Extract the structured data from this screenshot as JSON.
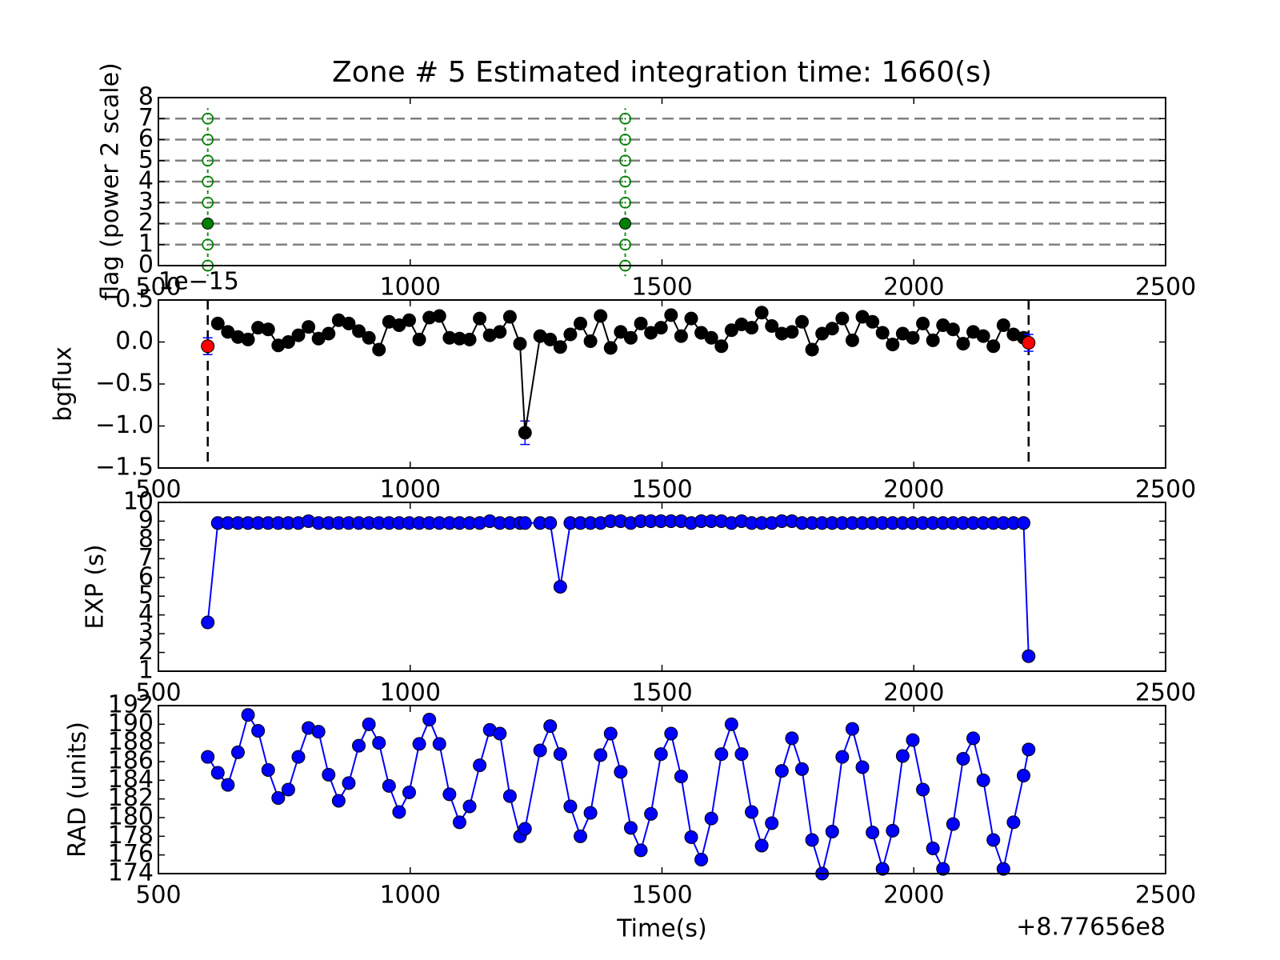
{
  "chart_data": [
    {
      "type": "scatter",
      "title": "Zone # 5 Estimated integration time: 1660(s)",
      "y_label": "flag (power 2 scale)",
      "x_offset": "+8.77656e8",
      "xlim": [
        500,
        2500
      ],
      "xticks": [
        500,
        1000,
        1500,
        2000,
        2500
      ],
      "ylim": [
        0,
        8
      ],
      "yticks": [
        0,
        1,
        2,
        3,
        4,
        5,
        6,
        7,
        8
      ],
      "hlines": [
        1,
        2,
        3,
        4,
        5,
        6,
        7
      ],
      "series": [
        {
          "color": "#008000",
          "filled": false,
          "x": [
            598,
            598,
            598,
            598,
            598,
            598,
            598,
            1427,
            1427,
            1427,
            1427,
            1427,
            1427,
            1427
          ],
          "values": [
            0,
            1,
            3,
            4,
            5,
            6,
            7,
            0,
            1,
            3,
            4,
            5,
            6,
            7
          ]
        },
        {
          "color": "#008000",
          "filled": true,
          "x": [
            598,
            1427
          ],
          "values": [
            2,
            2
          ]
        }
      ]
    },
    {
      "type": "line",
      "y_label": "bgflux",
      "y_offset": "1e−15",
      "xlim": [
        500,
        2500
      ],
      "xticks": [
        500,
        1000,
        1500,
        2000,
        2500
      ],
      "ylim": [
        -1.5,
        0.5
      ],
      "yticks": [
        {
          "value": -1.5,
          "label": "−1.5"
        },
        {
          "value": -1.0,
          "label": "−1.0"
        },
        {
          "value": -0.5,
          "label": "−0.5"
        },
        {
          "value": 0,
          "label": "0.0"
        },
        0.5
      ],
      "vlines": [
        598,
        2228
      ],
      "error_color": "#0000ff",
      "x": [
        598,
        618,
        638,
        658,
        678,
        698,
        718,
        738,
        758,
        778,
        798,
        818,
        838,
        858,
        878,
        898,
        918,
        938,
        958,
        978,
        998,
        1018,
        1038,
        1058,
        1078,
        1098,
        1118,
        1138,
        1158,
        1178,
        1198,
        1218,
        1228,
        1258,
        1278,
        1298,
        1318,
        1338,
        1358,
        1378,
        1398,
        1418,
        1438,
        1458,
        1478,
        1498,
        1518,
        1538,
        1558,
        1578,
        1598,
        1618,
        1638,
        1658,
        1678,
        1698,
        1718,
        1738,
        1758,
        1778,
        1798,
        1818,
        1838,
        1858,
        1878,
        1898,
        1918,
        1938,
        1958,
        1978,
        1998,
        2018,
        2038,
        2058,
        2078,
        2098,
        2118,
        2138,
        2158,
        2178,
        2198,
        2218,
        2228
      ],
      "series": [
        {
          "color": "#000000",
          "line": true,
          "values": [
            null,
            0.22,
            0.12,
            0.06,
            0.03,
            0.17,
            0.15,
            -0.04,
            0,
            0.08,
            0.18,
            0.04,
            0.1,
            0.26,
            0.22,
            0.13,
            0.05,
            -0.09,
            0.24,
            0.2,
            0.26,
            0.03,
            0.29,
            0.31,
            0.05,
            0.04,
            0.03,
            0.28,
            0.08,
            0.12,
            0.3,
            -0.02,
            -1.08,
            0.07,
            0.03,
            -0.06,
            0.09,
            0.22,
            0.01,
            0.31,
            -0.07,
            0.12,
            0.05,
            0.22,
            0.11,
            0.17,
            0.32,
            0.07,
            0.28,
            0.11,
            0.05,
            -0.05,
            0.14,
            0.21,
            0.17,
            0.35,
            0.19,
            0.1,
            0.12,
            0.24,
            -0.09,
            0.1,
            0.16,
            0.28,
            0.02,
            0.3,
            0.24,
            0.11,
            -0.03,
            0.1,
            0.05,
            0.22,
            0.02,
            0.2,
            0.15,
            -0.02,
            0.12,
            0.07,
            -0.05,
            0.2,
            0.09,
            0.05,
            null
          ],
          "errors": [
            null,
            0.04,
            0.04,
            0.04,
            0.04,
            0.04,
            0.04,
            0.04,
            0.04,
            0.04,
            0.04,
            0.04,
            0.04,
            0.04,
            0.04,
            0.04,
            0.04,
            0.04,
            0.04,
            0.04,
            0.04,
            0.04,
            0.04,
            0.04,
            0.04,
            0.04,
            0.04,
            0.04,
            0.04,
            0.04,
            0.04,
            0.04,
            0.14,
            0.04,
            0.04,
            0.04,
            0.04,
            0.04,
            0.04,
            0.04,
            0.04,
            0.04,
            0.04,
            0.04,
            0.04,
            0.04,
            0.04,
            0.04,
            0.04,
            0.04,
            0.04,
            0.04,
            0.04,
            0.04,
            0.04,
            0.04,
            0.04,
            0.04,
            0.04,
            0.04,
            0.04,
            0.04,
            0.04,
            0.04,
            0.04,
            0.04,
            0.04,
            0.04,
            0.04,
            0.04,
            0.04,
            0.04,
            0.04,
            0.04,
            0.04,
            0.04,
            0.04,
            0.04,
            0.04,
            0.04,
            0.04,
            0.04,
            null
          ]
        },
        {
          "color": "#ff0000",
          "line": false,
          "x": [
            598,
            2228
          ],
          "values": [
            -0.05,
            -0.01
          ],
          "errors": [
            0.1,
            0.1
          ]
        }
      ]
    },
    {
      "type": "line",
      "y_label": "EXP (s)",
      "xlim": [
        500,
        2500
      ],
      "xticks": [
        500,
        1000,
        1500,
        2000,
        2500
      ],
      "ylim": [
        1,
        10
      ],
      "yticks": [
        1,
        2,
        3,
        4,
        5,
        6,
        7,
        8,
        9,
        10
      ],
      "x": [
        598,
        618,
        638,
        658,
        678,
        698,
        718,
        738,
        758,
        778,
        798,
        818,
        838,
        858,
        878,
        898,
        918,
        938,
        958,
        978,
        998,
        1018,
        1038,
        1058,
        1078,
        1098,
        1118,
        1138,
        1158,
        1178,
        1198,
        1218,
        1228,
        1258,
        1278,
        1298,
        1318,
        1338,
        1358,
        1378,
        1398,
        1418,
        1438,
        1458,
        1478,
        1498,
        1518,
        1538,
        1558,
        1578,
        1598,
        1618,
        1638,
        1658,
        1678,
        1698,
        1718,
        1738,
        1758,
        1778,
        1798,
        1818,
        1838,
        1858,
        1878,
        1898,
        1918,
        1938,
        1958,
        1978,
        1998,
        2018,
        2038,
        2058,
        2078,
        2098,
        2118,
        2138,
        2158,
        2178,
        2198,
        2218,
        2228
      ],
      "series": [
        {
          "color": "#0000ff",
          "line": true,
          "values": [
            3.6,
            8.9,
            8.9,
            8.9,
            8.9,
            8.9,
            8.9,
            8.9,
            8.9,
            8.9,
            9.0,
            8.9,
            8.9,
            8.9,
            8.9,
            8.9,
            8.9,
            8.9,
            8.9,
            8.9,
            8.9,
            8.9,
            8.9,
            8.9,
            8.9,
            8.9,
            8.9,
            8.9,
            9.0,
            8.9,
            8.9,
            8.9,
            8.9,
            8.9,
            8.9,
            5.5,
            8.9,
            8.9,
            8.9,
            8.9,
            9.0,
            9.0,
            8.9,
            9.0,
            9.0,
            9.0,
            9.0,
            9.0,
            8.9,
            9.0,
            9.0,
            9.0,
            8.9,
            9.0,
            8.9,
            8.9,
            8.9,
            9.0,
            9.0,
            8.9,
            8.9,
            8.9,
            8.9,
            8.9,
            8.9,
            8.9,
            8.9,
            8.9,
            8.9,
            8.9,
            8.9,
            8.9,
            8.9,
            8.9,
            8.9,
            8.9,
            8.9,
            8.9,
            8.9,
            8.9,
            8.9,
            8.9,
            1.8
          ]
        }
      ]
    },
    {
      "type": "line",
      "y_label": "RAD (units)",
      "x_label": "Time(s)",
      "x_offset": "+8.77656e8",
      "xlim": [
        500,
        2500
      ],
      "xticks": [
        500,
        1000,
        1500,
        2000,
        2500
      ],
      "ylim": [
        174,
        192
      ],
      "yticks": [
        174,
        176,
        178,
        180,
        182,
        184,
        186,
        188,
        190,
        192
      ],
      "x": [
        598,
        618,
        638,
        658,
        678,
        698,
        718,
        738,
        758,
        778,
        798,
        818,
        838,
        858,
        878,
        898,
        918,
        938,
        958,
        978,
        998,
        1018,
        1038,
        1058,
        1078,
        1098,
        1118,
        1138,
        1158,
        1178,
        1198,
        1218,
        1228,
        1258,
        1278,
        1298,
        1318,
        1338,
        1358,
        1378,
        1398,
        1418,
        1438,
        1458,
        1478,
        1498,
        1518,
        1538,
        1558,
        1578,
        1598,
        1618,
        1638,
        1658,
        1678,
        1698,
        1718,
        1738,
        1758,
        1778,
        1798,
        1818,
        1838,
        1858,
        1878,
        1898,
        1918,
        1938,
        1958,
        1978,
        1998,
        2018,
        2038,
        2058,
        2078,
        2098,
        2118,
        2138,
        2158,
        2178,
        2198,
        2218,
        2228
      ],
      "series": [
        {
          "color": "#0000ff",
          "line": true,
          "values": [
            186.5,
            184.8,
            183.5,
            187,
            191,
            189.3,
            185.1,
            182.1,
            183.0,
            186.5,
            189.6,
            189.2,
            184.6,
            181.8,
            183.7,
            187.7,
            190,
            188.0,
            183.4,
            180.6,
            182.7,
            187.9,
            190.5,
            187.9,
            182.5,
            179.5,
            181.2,
            185.6,
            189.4,
            189.0,
            182.3,
            178,
            178.8,
            187.2,
            189.8,
            186.8,
            181.2,
            178.0,
            180.5,
            186.7,
            189,
            184.9,
            178.9,
            176.5,
            180.4,
            186.8,
            189,
            184.4,
            177.9,
            175.5,
            179.9,
            186.8,
            190,
            186.8,
            180.6,
            177,
            179.4,
            185.0,
            188.5,
            185.2,
            177.6,
            174,
            178.5,
            186.5,
            189.5,
            185.4,
            178.4,
            174.5,
            178.6,
            186.6,
            188.3,
            183.0,
            176.7,
            174.5,
            179.3,
            186.3,
            188.5,
            184.0,
            177.6,
            174.5,
            179.5,
            184.5,
            187.3
          ]
        }
      ]
    }
  ]
}
